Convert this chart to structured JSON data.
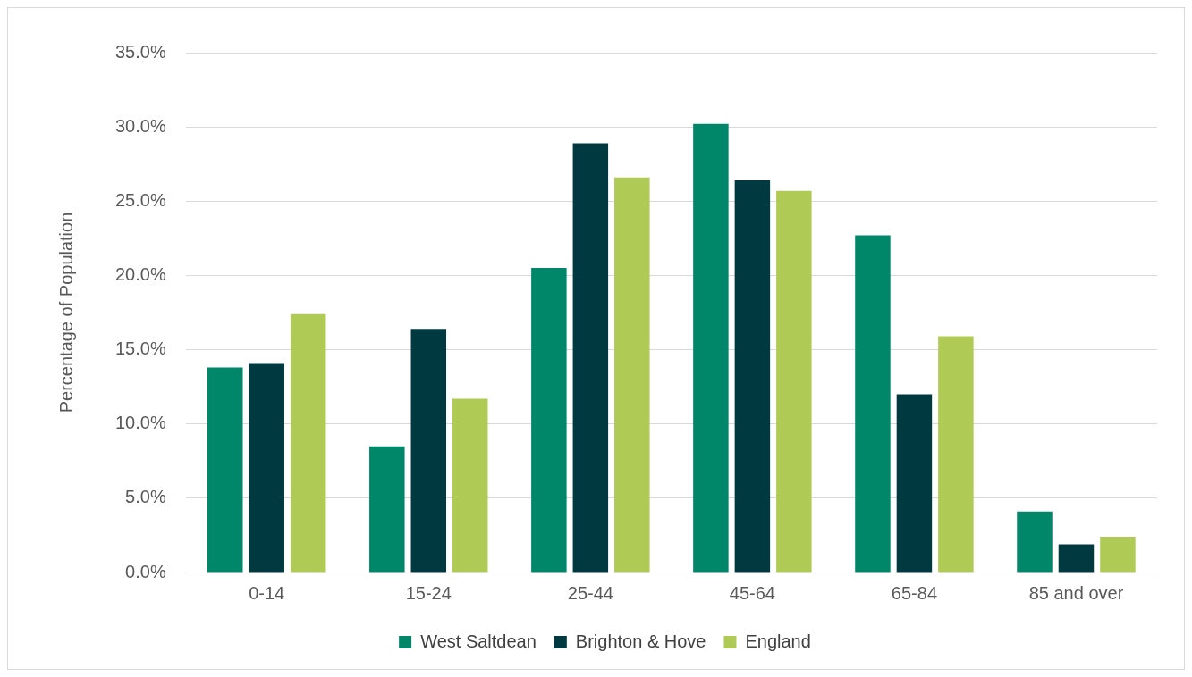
{
  "chart_data": {
    "type": "bar",
    "ylabel": "Percentage of Population",
    "categories": [
      "0-14",
      "15-24",
      "25-44",
      "45-64",
      "65-84",
      "85 and over"
    ],
    "series": [
      {
        "name": "West Saltdean",
        "color": "#00876a",
        "values": [
          13.8,
          8.5,
          20.5,
          30.2,
          22.7,
          4.1
        ]
      },
      {
        "name": "Brighton & Hove",
        "color": "#003a40",
        "values": [
          14.1,
          16.4,
          28.9,
          26.4,
          12.0,
          1.9
        ]
      },
      {
        "name": "England",
        "color": "#afcb55",
        "values": [
          17.4,
          11.7,
          26.6,
          25.7,
          15.9,
          2.4
        ]
      }
    ],
    "ylim": [
      0,
      35
    ],
    "yticks": [
      {
        "value": 0,
        "label": "0.0%"
      },
      {
        "value": 5,
        "label": "5.0%"
      },
      {
        "value": 10,
        "label": "10.0%"
      },
      {
        "value": 15,
        "label": "15.0%"
      },
      {
        "value": 20,
        "label": "20.0%"
      },
      {
        "value": 25,
        "label": "25.0%"
      },
      {
        "value": 30,
        "label": "30.0%"
      },
      {
        "value": 35,
        "label": "35.0%"
      }
    ],
    "grid": "y",
    "legend": "bottom"
  }
}
